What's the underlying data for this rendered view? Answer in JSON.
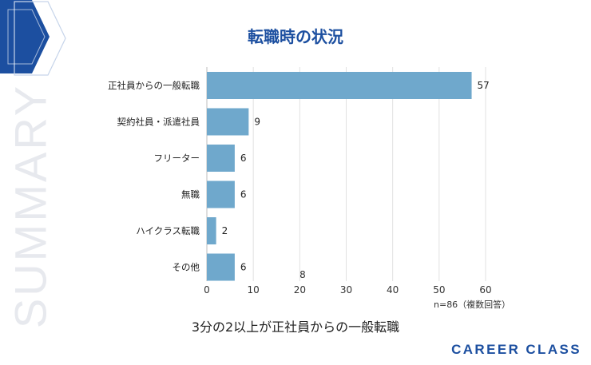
{
  "colors": {
    "accent": "#1c4fa0",
    "bar": "#6fa8cc",
    "grid": "#e1e1e1"
  },
  "watermark": "SUMMARY",
  "brand": "CAREER CLASS",
  "caption": "3分の2以上が正社員からの一般転職",
  "note": "n=86（複数回答）",
  "chart_data": {
    "type": "bar",
    "orientation": "horizontal",
    "title": "転職時の状況",
    "categories": [
      "正社員からの一般転職",
      "契約社員・派遣社員",
      "フリーター",
      "無職",
      "ハイクラス転職",
      "その他"
    ],
    "values": [
      57,
      9,
      6,
      6,
      2,
      6
    ],
    "xlim": [
      0,
      60
    ],
    "xticks": [
      0,
      10,
      20,
      30,
      40,
      50,
      60
    ],
    "grid": true,
    "annotation": "8"
  }
}
